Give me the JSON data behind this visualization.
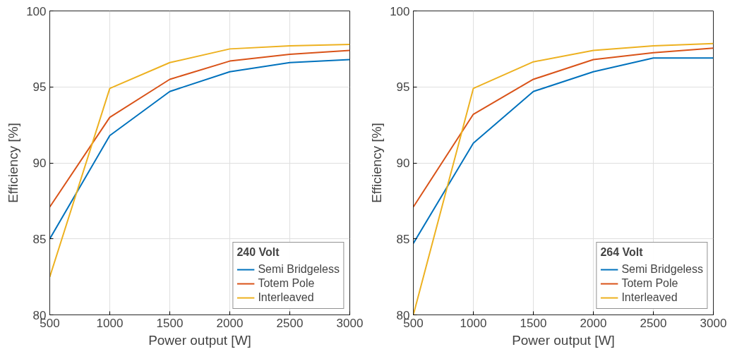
{
  "chart_data": [
    {
      "type": "line",
      "xlabel": "Power output [W]",
      "ylabel": "Efficiency [%]",
      "legend_title": "240 Volt",
      "x": [
        500,
        1000,
        1500,
        2000,
        2500,
        3000
      ],
      "xlim": [
        500,
        3000
      ],
      "xticks": [
        500,
        1000,
        1500,
        2000,
        2500,
        3000
      ],
      "ylim": [
        80,
        100
      ],
      "yticks": [
        80,
        85,
        90,
        95,
        100
      ],
      "grid": true,
      "legend": "bottom right",
      "marker": "none",
      "line_style": "solid",
      "series": [
        {
          "name": "Semi Bridgeless",
          "color": "#0072bd",
          "values": [
            85.0,
            91.8,
            94.7,
            96.0,
            96.6,
            96.8
          ]
        },
        {
          "name": "Totem Pole",
          "color": "#d95319",
          "values": [
            87.1,
            93.0,
            95.5,
            96.7,
            97.15,
            97.4
          ]
        },
        {
          "name": "Interleaved",
          "color": "#edb120",
          "values": [
            82.5,
            94.9,
            96.6,
            97.5,
            97.7,
            97.8
          ]
        }
      ]
    },
    {
      "type": "line",
      "xlabel": "Power output [W]",
      "ylabel": "Efficiency [%]",
      "legend_title": "264 Volt",
      "x": [
        500,
        1000,
        1500,
        2000,
        2500,
        3000
      ],
      "xlim": [
        500,
        3000
      ],
      "xticks": [
        500,
        1000,
        1500,
        2000,
        2500,
        3000
      ],
      "ylim": [
        80,
        100
      ],
      "yticks": [
        80,
        85,
        90,
        95,
        100
      ],
      "grid": true,
      "legend": "bottom right",
      "marker": "none",
      "line_style": "solid",
      "series": [
        {
          "name": "Semi Bridgeless",
          "color": "#0072bd",
          "values": [
            84.7,
            91.3,
            94.7,
            96.0,
            96.9,
            96.9
          ]
        },
        {
          "name": "Totem Pole",
          "color": "#d95319",
          "values": [
            87.1,
            93.2,
            95.5,
            96.8,
            97.25,
            97.55
          ]
        },
        {
          "name": "Interleaved",
          "color": "#edb120",
          "values": [
            80.0,
            94.9,
            96.65,
            97.4,
            97.7,
            97.85
          ]
        }
      ]
    }
  ]
}
